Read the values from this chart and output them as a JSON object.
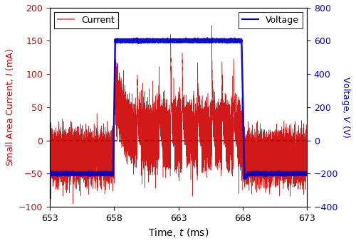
{
  "xlim": [
    653,
    673
  ],
  "ylim_left": [
    -100,
    200
  ],
  "ylim_right": [
    -400,
    800
  ],
  "yticks_left": [
    -100,
    -50,
    0,
    50,
    100,
    150,
    200
  ],
  "yticks_right": [
    -400,
    -200,
    0,
    200,
    400,
    600,
    800
  ],
  "xticks": [
    653,
    658,
    663,
    668,
    673
  ],
  "xlabel": "Time, $t$ (ms)",
  "ylabel_left": "Small Area Current, $I$ (mA)",
  "ylabel_right": "Voltage, $V$ (V)",
  "legend_current": "Current",
  "legend_voltage": "Voltage",
  "current_color": "#cc0000",
  "current_color_light": "#e87070",
  "voltage_color": "#0000cc",
  "dashed_color": "#111111",
  "background_color": "#ffffff",
  "figsize": [
    5.0,
    3.42
  ],
  "dpi": 100,
  "voltage_high": 600,
  "voltage_low": -200,
  "voltage_transition_start": 658.0,
  "voltage_transition_end": 668.0,
  "current_neg_baseline": -25,
  "current_neg_noise": 18,
  "spike_times": [
    659.8,
    661.5,
    662.4,
    663.3,
    664.5,
    665.6,
    666.4,
    667.3
  ],
  "spike_heights": [
    95,
    108,
    160,
    130,
    115,
    160,
    115,
    115
  ]
}
